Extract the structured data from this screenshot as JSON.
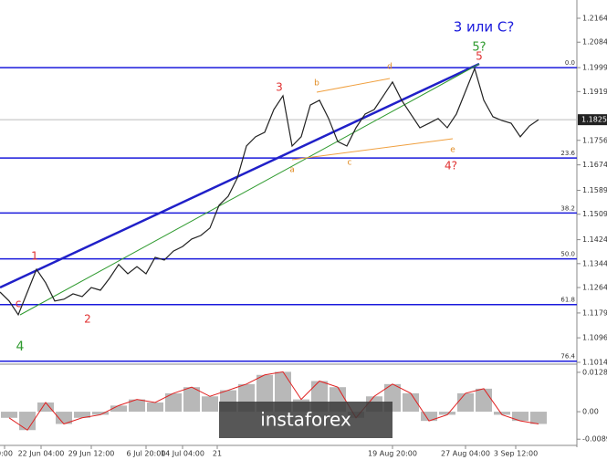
{
  "chart_data": {
    "type": "line",
    "color": "#222222",
    "values": [
      1.1249,
      1.1219,
      1.1173,
      1.1249,
      1.1325,
      1.128,
      1.1219,
      1.1225,
      1.1243,
      1.1234,
      1.1264,
      1.1255,
      1.1295,
      1.1341,
      1.131,
      1.1334,
      1.131,
      1.1365,
      1.1356,
      1.1386,
      1.1401,
      1.1426,
      1.1438,
      1.1463,
      1.1539,
      1.1569,
      1.163,
      1.1737,
      1.1768,
      1.1783,
      1.1859,
      1.1905,
      1.1737,
      1.1768,
      1.1874,
      1.189,
      1.1829,
      1.1752,
      1.1737,
      1.1798,
      1.1844,
      1.1859,
      1.1905,
      1.1951,
      1.189,
      1.1844,
      1.1798,
      1.1813,
      1.1829,
      1.1798,
      1.1844,
      1.192,
      1.1996,
      1.189,
      1.1835,
      1.1822,
      1.1813,
      1.1768,
      1.1804,
      1.1825
    ],
    "ylim": [
      1.1011,
      1.2225
    ],
    "yticks": [
      1.2164,
      1.2084,
      1.1999,
      1.1919,
      1.1756,
      1.1674,
      1.1589,
      1.1509,
      1.1424,
      1.1344,
      1.1264,
      1.1179,
      1.1096,
      1.1014
    ],
    "last_price": 1.1825,
    "xticks": [
      {
        "value": 0.5,
        "label": "0:00"
      },
      {
        "value": 4.5,
        "label": "22 Jun 04:00"
      },
      {
        "value": 10,
        "label": "29 Jun 12:00"
      },
      {
        "value": 16,
        "label": "6 Jul 20:00"
      },
      {
        "value": 20,
        "label": "14 Jul 04:00"
      },
      {
        "value": 23.8,
        "label": "21"
      },
      {
        "value": 43,
        "label": "19 Aug 20:00"
      },
      {
        "value": 51,
        "label": "27 Aug 04:00"
      },
      {
        "value": 56.5,
        "label": "3 Sep 12:00"
      }
    ],
    "fib_levels": [
      {
        "label": "0.0",
        "price": 1.1999
      },
      {
        "label": "23.6",
        "price": 1.1697
      },
      {
        "label": "38.2",
        "price": 1.1513
      },
      {
        "label": "50.0",
        "price": 1.136
      },
      {
        "label": "61.8",
        "price": 1.1207
      },
      {
        "label": "76.4",
        "price": 1.1018
      }
    ],
    "annotations": [
      "3 или C?",
      "5?",
      "5",
      "3",
      "1",
      "2",
      "c",
      "4",
      "4?",
      "b",
      "d",
      "a",
      "c",
      "e"
    ],
    "oscillator": {
      "values": [
        -0.002,
        -0.006,
        0.003,
        -0.004,
        -0.002,
        -0.001,
        0.002,
        0.004,
        0.003,
        0.006,
        0.008,
        0.005,
        0.007,
        0.009,
        0.012,
        0.013,
        0.004,
        0.01,
        0.008,
        -0.002,
        0.005,
        0.009,
        0.006,
        -0.003,
        -0.001,
        0.006,
        0.0075,
        -0.001,
        -0.003,
        -0.004
      ],
      "ylim": [
        -0.0098,
        0.0152
      ],
      "yticks": [
        {
          "value": 0.01284,
          "label": "0.01284"
        },
        {
          "value": 0,
          "label": "0.00"
        },
        {
          "value": -0.00897,
          "label": "-0.00897"
        }
      ]
    },
    "watermark": "instaforex"
  }
}
